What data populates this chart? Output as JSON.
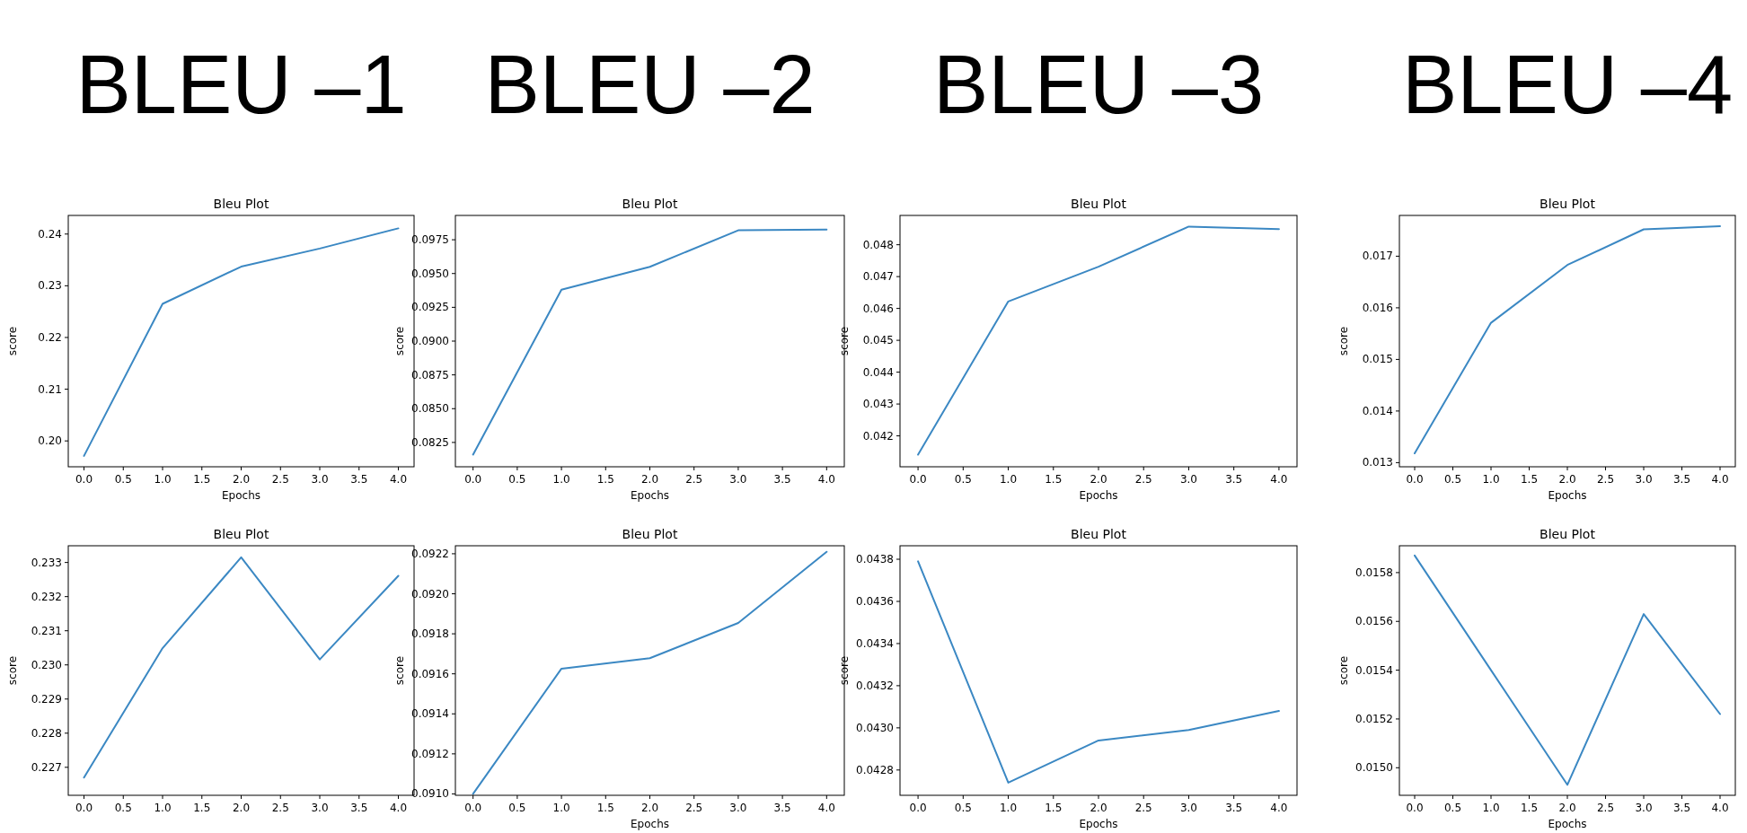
{
  "chart_data": [
    {
      "type": "line",
      "title": "Bleu Plot",
      "xlabel": "Epochs",
      "ylabel": "score",
      "annotations": [
        "BLEU –1"
      ],
      "x": [
        0,
        1,
        2,
        3,
        4
      ],
      "series": [
        {
          "color": "#3b88c3",
          "values": [
            0.1971,
            0.2265,
            0.2337,
            0.2372,
            0.2411
          ]
        }
      ],
      "xlim": [
        -0.2,
        4.2
      ],
      "xticks": [
        {
          "value": 0,
          "label": "0.0"
        },
        {
          "value": 0.5,
          "label": "0.5"
        },
        {
          "value": 1,
          "label": "1.0"
        },
        {
          "value": 1.5,
          "label": "1.5"
        },
        {
          "value": 2,
          "label": "2.0"
        },
        {
          "value": 2.5,
          "label": "2.5"
        },
        {
          "value": 3,
          "label": "3.0"
        },
        {
          "value": 3.5,
          "label": "3.5"
        },
        {
          "value": 4,
          "label": "4.0"
        }
      ],
      "ylim": [
        0.195,
        0.2436
      ],
      "yticks": [
        {
          "value": 0.2,
          "label": "0.20"
        },
        0.21,
        0.22,
        0.23,
        0.24
      ]
    },
    {
      "type": "line",
      "title": "Bleu Plot",
      "xlabel": "Epochs",
      "ylabel": "score",
      "annotations": [
        "BLEU –2"
      ],
      "x": [
        0,
        1,
        2,
        3,
        4
      ],
      "series": [
        {
          "color": "#3b88c3",
          "values": [
            0.0816,
            0.0938,
            0.0955,
            0.0982,
            0.09825
          ]
        }
      ],
      "xlim": [
        -0.2,
        4.2
      ],
      "xticks": [
        {
          "value": 0,
          "label": "0.0"
        },
        {
          "value": 0.5,
          "label": "0.5"
        },
        {
          "value": 1,
          "label": "1.0"
        },
        {
          "value": 1.5,
          "label": "1.5"
        },
        {
          "value": 2,
          "label": "2.0"
        },
        {
          "value": 2.5,
          "label": "2.5"
        },
        {
          "value": 3,
          "label": "3.0"
        },
        {
          "value": 3.5,
          "label": "3.5"
        },
        {
          "value": 4,
          "label": "4.0"
        }
      ],
      "ylim": [
        0.0807,
        0.0993
      ],
      "yticks": [
        0.0825,
        {
          "value": 0.085,
          "label": "0.0850"
        },
        0.0875,
        {
          "value": 0.09,
          "label": "0.0900"
        },
        0.0925,
        {
          "value": 0.095,
          "label": "0.0950"
        },
        0.0975
      ]
    },
    {
      "type": "line",
      "title": "Bleu Plot",
      "xlabel": "Epochs",
      "ylabel": "score",
      "annotations": [
        "BLEU –3"
      ],
      "x": [
        0,
        1,
        2,
        3,
        4
      ],
      "series": [
        {
          "color": "#3b88c3",
          "values": [
            0.04141,
            0.04622,
            0.04731,
            0.04857,
            0.04849
          ]
        }
      ],
      "xlim": [
        -0.2,
        4.2
      ],
      "xticks": [
        {
          "value": 0,
          "label": "0.0"
        },
        {
          "value": 0.5,
          "label": "0.5"
        },
        {
          "value": 1,
          "label": "1.0"
        },
        {
          "value": 1.5,
          "label": "1.5"
        },
        {
          "value": 2,
          "label": "2.0"
        },
        {
          "value": 2.5,
          "label": "2.5"
        },
        {
          "value": 3,
          "label": "3.0"
        },
        {
          "value": 3.5,
          "label": "3.5"
        },
        {
          "value": 4,
          "label": "4.0"
        }
      ],
      "ylim": [
        0.04103,
        0.04892
      ],
      "yticks": [
        0.042,
        0.043,
        0.044,
        0.045,
        0.046,
        0.047,
        0.048
      ]
    },
    {
      "type": "line",
      "title": "Bleu Plot",
      "xlabel": "Epochs",
      "ylabel": "score",
      "annotations": [
        "BLEU –4"
      ],
      "x": [
        0,
        1,
        2,
        3,
        4
      ],
      "series": [
        {
          "color": "#3b88c3",
          "values": [
            0.01318,
            0.01571,
            0.01683,
            0.01752,
            0.01758
          ]
        }
      ],
      "xlim": [
        -0.2,
        4.2
      ],
      "xticks": [
        {
          "value": 0,
          "label": "0.0"
        },
        {
          "value": 0.5,
          "label": "0.5"
        },
        {
          "value": 1,
          "label": "1.0"
        },
        {
          "value": 1.5,
          "label": "1.5"
        },
        {
          "value": 2,
          "label": "2.0"
        },
        {
          "value": 2.5,
          "label": "2.5"
        },
        {
          "value": 3,
          "label": "3.0"
        },
        {
          "value": 3.5,
          "label": "3.5"
        },
        {
          "value": 4,
          "label": "4.0"
        }
      ],
      "ylim": [
        0.01292,
        0.01779
      ],
      "yticks": [
        0.013,
        0.014,
        0.015,
        0.016,
        0.017
      ]
    },
    {
      "type": "line",
      "title": "Bleu Plot",
      "ylabel": "score",
      "x": [
        0,
        1,
        2,
        3,
        4
      ],
      "series": [
        {
          "color": "#3b88c3",
          "values": [
            0.2267,
            0.23049,
            0.23315,
            0.23016,
            0.23261
          ]
        }
      ],
      "xlim": [
        -0.2,
        4.2
      ],
      "xticks": [
        {
          "value": 0,
          "label": "0.0"
        },
        {
          "value": 0.5,
          "label": "0.5"
        },
        {
          "value": 1,
          "label": "1.0"
        },
        {
          "value": 1.5,
          "label": "1.5"
        },
        {
          "value": 2,
          "label": "2.0"
        },
        {
          "value": 2.5,
          "label": "2.5"
        },
        {
          "value": 3,
          "label": "3.0"
        },
        {
          "value": 3.5,
          "label": "3.5"
        },
        {
          "value": 4,
          "label": "4.0"
        }
      ],
      "ylim": [
        0.22618,
        0.23349
      ],
      "yticks": [
        0.227,
        0.228,
        0.229,
        {
          "value": 0.23,
          "label": "0.230"
        },
        0.231,
        0.232,
        0.233
      ]
    },
    {
      "type": "line",
      "title": "Bleu Plot",
      "xlabel": "Epochs",
      "ylabel": "score",
      "x": [
        0,
        1,
        2,
        3,
        4
      ],
      "series": [
        {
          "color": "#3b88c3",
          "values": [
            0.091,
            0.091626,
            0.091678,
            0.091854,
            0.09221
          ]
        }
      ],
      "xlim": [
        -0.2,
        4.2
      ],
      "xticks": [
        {
          "value": 0,
          "label": "0.0"
        },
        {
          "value": 0.5,
          "label": "0.5"
        },
        {
          "value": 1,
          "label": "1.0"
        },
        {
          "value": 1.5,
          "label": "1.5"
        },
        {
          "value": 2,
          "label": "2.0"
        },
        {
          "value": 2.5,
          "label": "2.5"
        },
        {
          "value": 3,
          "label": "3.0"
        },
        {
          "value": 3.5,
          "label": "3.5"
        },
        {
          "value": 4,
          "label": "4.0"
        }
      ],
      "ylim": [
        0.090993,
        0.09224
      ],
      "yticks": [
        {
          "value": 0.091,
          "label": "0.0910"
        },
        0.0912,
        0.0914,
        0.0916,
        0.0918,
        {
          "value": 0.092,
          "label": "0.0920"
        },
        0.0922
      ]
    },
    {
      "type": "line",
      "title": "Bleu Plot",
      "xlabel": "Epochs",
      "ylabel": "score",
      "x": [
        0,
        1,
        2,
        3,
        4
      ],
      "series": [
        {
          "color": "#3b88c3",
          "values": [
            0.04379,
            0.04274,
            0.04294,
            0.04299,
            0.04308
          ]
        }
      ],
      "xlim": [
        -0.2,
        4.2
      ],
      "xticks": [
        {
          "value": 0,
          "label": "0.0"
        },
        {
          "value": 0.5,
          "label": "0.5"
        },
        {
          "value": 1,
          "label": "1.0"
        },
        {
          "value": 1.5,
          "label": "1.5"
        },
        {
          "value": 2,
          "label": "2.0"
        },
        {
          "value": 2.5,
          "label": "2.5"
        },
        {
          "value": 3,
          "label": "3.0"
        },
        {
          "value": 3.5,
          "label": "3.5"
        },
        {
          "value": 4,
          "label": "4.0"
        }
      ],
      "ylim": [
        0.04268,
        0.043864
      ],
      "yticks": [
        0.0428,
        {
          "value": 0.043,
          "label": "0.0430"
        },
        0.0432,
        0.0434,
        0.0436,
        0.0438
      ]
    },
    {
      "type": "line",
      "title": "Bleu Plot",
      "xlabel": "Epochs",
      "ylabel": "score",
      "x": [
        0,
        1,
        2,
        3,
        4
      ],
      "series": [
        {
          "color": "#3b88c3",
          "values": [
            0.01587,
            0.0154,
            0.01493,
            0.01563,
            0.01522
          ]
        }
      ],
      "xlim": [
        -0.2,
        4.2
      ],
      "xticks": [
        {
          "value": 0,
          "label": "0.0"
        },
        {
          "value": 0.5,
          "label": "0.5"
        },
        {
          "value": 1,
          "label": "1.0"
        },
        {
          "value": 1.5,
          "label": "1.5"
        },
        {
          "value": 2,
          "label": "2.0"
        },
        {
          "value": 2.5,
          "label": "2.5"
        },
        {
          "value": 3,
          "label": "3.0"
        },
        {
          "value": 3.5,
          "label": "3.5"
        },
        {
          "value": 4,
          "label": "4.0"
        }
      ],
      "ylim": [
        0.014887,
        0.01591
      ],
      "yticks": [
        {
          "value": 0.015,
          "label": "0.0150"
        },
        0.0152,
        0.0154,
        0.0156,
        0.0158
      ]
    }
  ]
}
